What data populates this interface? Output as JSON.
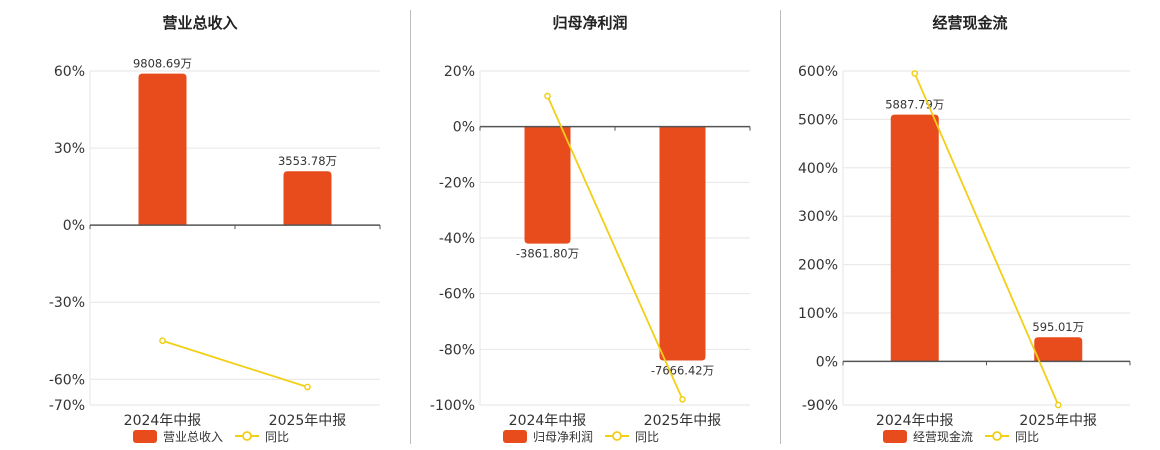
{
  "chart_data": [
    {
      "type": "bar",
      "title": "营业总收入",
      "categories": [
        "2024年中报",
        "2025年中报"
      ],
      "series": [
        {
          "name": "营业总收入",
          "kind": "bar",
          "values": [
            59,
            21
          ],
          "labels": [
            "9808.69万",
            "3553.78万"
          ]
        },
        {
          "name": "同比",
          "kind": "line",
          "values": [
            -45,
            -63
          ]
        }
      ],
      "yticks": [
        60,
        30,
        0,
        -30,
        -60,
        -70
      ],
      "ytick_labels": [
        "60%",
        "30%",
        "0%",
        "-30%",
        "-60%",
        "-70%"
      ],
      "ylim": [
        -70,
        60
      ],
      "grid": true,
      "legend_position": "bottom"
    },
    {
      "type": "bar",
      "title": "归母净利润",
      "categories": [
        "2024年中报",
        "2025年中报"
      ],
      "series": [
        {
          "name": "归母净利润",
          "kind": "bar",
          "values": [
            -42,
            -84
          ],
          "labels": [
            "-3861.80万",
            "-7666.42万"
          ]
        },
        {
          "name": "同比",
          "kind": "line",
          "values": [
            11,
            -98
          ]
        }
      ],
      "yticks": [
        20,
        0,
        -20,
        -40,
        -60,
        -80,
        -100
      ],
      "ytick_labels": [
        "20%",
        "0%",
        "-20%",
        "-40%",
        "-60%",
        "-80%",
        "-100%"
      ],
      "ylim": [
        -100,
        20
      ],
      "grid": true,
      "legend_position": "bottom"
    },
    {
      "type": "bar",
      "title": "经营现金流",
      "categories": [
        "2024年中报",
        "2025年中报"
      ],
      "series": [
        {
          "name": "经营现金流",
          "kind": "bar",
          "values": [
            510,
            50
          ],
          "labels": [
            "5887.79万",
            "595.01万"
          ]
        },
        {
          "name": "同比",
          "kind": "line",
          "values": [
            595,
            -90
          ]
        }
      ],
      "yticks": [
        600,
        500,
        400,
        300,
        200,
        100,
        0,
        -90
      ],
      "ytick_labels": [
        "600%",
        "500%",
        "400%",
        "300%",
        "200%",
        "100%",
        "0%",
        "-90%"
      ],
      "ylim": [
        -90,
        600
      ],
      "grid": true,
      "legend_position": "bottom"
    }
  ],
  "colors": {
    "bar": "#e84b1c",
    "line": "#f2cf17",
    "axis": "#555555",
    "grid": "#e6e6e6",
    "divider": "#bdbdbd"
  }
}
